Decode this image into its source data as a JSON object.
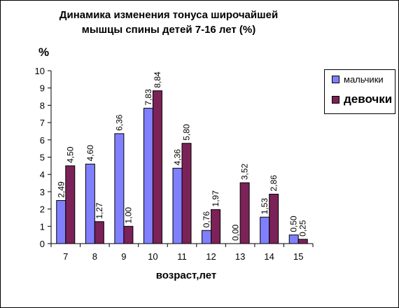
{
  "chart_data": {
    "type": "bar",
    "title_lines": [
      "Динамика изменения тонуса широчайшей",
      "мышцы спины детей 7-16 лет (%)"
    ],
    "ylabel": "%",
    "xlabel": "возраст,лет",
    "categories": [
      "7",
      "8",
      "9",
      "10",
      "11",
      "12",
      "13",
      "14",
      "15"
    ],
    "ylim": [
      0,
      10
    ],
    "yticks": [
      "0",
      "1",
      "2",
      "3",
      "4",
      "5",
      "6",
      "7",
      "8",
      "9",
      "10"
    ],
    "legend_position": "right",
    "series": [
      {
        "name": "мальчики",
        "color": "#8080ff",
        "values": [
          2.49,
          4.6,
          6.36,
          7.83,
          4.36,
          0.76,
          0.0,
          1.53,
          0.5
        ],
        "labels": [
          "2,49",
          "4,60",
          "6,36",
          "7,83",
          "4,36",
          "0,76",
          "0,00",
          "1,53",
          "0,50"
        ]
      },
      {
        "name": "девочки",
        "color": "#7b2258",
        "values": [
          4.5,
          1.27,
          1.0,
          8.84,
          5.8,
          1.97,
          3.52,
          2.86,
          0.25
        ],
        "labels": [
          "4,50",
          "1,27",
          "1,00",
          "8,84",
          "5,80",
          "1,97",
          "3,52",
          "2,86",
          "0,25"
        ]
      }
    ]
  }
}
